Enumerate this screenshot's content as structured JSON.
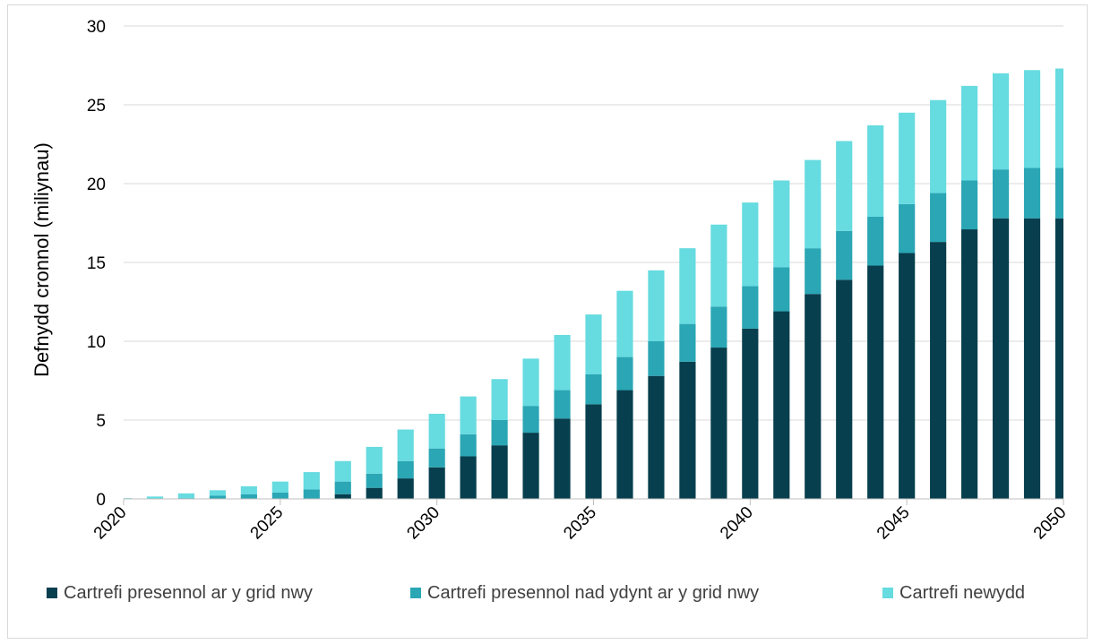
{
  "chart_data": {
    "type": "bar",
    "stacked": true,
    "title": "",
    "xlabel": "",
    "ylabel": "Defnydd cronnol (miliynau)",
    "ylim": [
      0,
      30
    ],
    "yticks": [
      0,
      5,
      10,
      15,
      20,
      25,
      30
    ],
    "xticks": [
      2020,
      2025,
      2030,
      2035,
      2040,
      2045,
      2050
    ],
    "grid": "horizontal",
    "legend_position": "bottom",
    "categories": [
      2020,
      2021,
      2022,
      2023,
      2024,
      2025,
      2026,
      2027,
      2028,
      2029,
      2030,
      2031,
      2032,
      2033,
      2034,
      2035,
      2036,
      2037,
      2038,
      2039,
      2040,
      2041,
      2042,
      2043,
      2044,
      2045,
      2046,
      2047,
      2048,
      2049,
      2050
    ],
    "series": [
      {
        "name": "Cartrefi presennol ar y grid nwy",
        "color": "#073f4e",
        "values": [
          0,
          0,
          0,
          0,
          0,
          0,
          0,
          0.3,
          0.7,
          1.3,
          2.0,
          2.7,
          3.4,
          4.2,
          5.1,
          6.0,
          6.9,
          7.8,
          8.7,
          9.6,
          10.8,
          11.9,
          13.0,
          13.9,
          14.8,
          15.6,
          16.3,
          17.1,
          17.8,
          17.8,
          17.8
        ]
      },
      {
        "name": "Cartrefi presennol nad ydynt ar y grid nwy",
        "color": "#2aa6b4",
        "values": [
          0,
          0,
          0.05,
          0.2,
          0.3,
          0.4,
          0.6,
          0.8,
          0.9,
          1.1,
          1.2,
          1.4,
          1.6,
          1.7,
          1.8,
          1.9,
          2.1,
          2.2,
          2.4,
          2.6,
          2.7,
          2.8,
          2.9,
          3.1,
          3.1,
          3.1,
          3.1,
          3.1,
          3.1,
          3.2,
          3.2
        ]
      },
      {
        "name": "Cartrefi newydd",
        "color": "#66dbe0",
        "values": [
          0.05,
          0.15,
          0.3,
          0.35,
          0.5,
          0.7,
          1.1,
          1.3,
          1.7,
          2.0,
          2.2,
          2.4,
          2.6,
          3.0,
          3.5,
          3.8,
          4.2,
          4.5,
          4.8,
          5.2,
          5.3,
          5.5,
          5.6,
          5.7,
          5.8,
          5.8,
          5.9,
          6.0,
          6.1,
          6.2,
          6.3
        ]
      }
    ]
  }
}
